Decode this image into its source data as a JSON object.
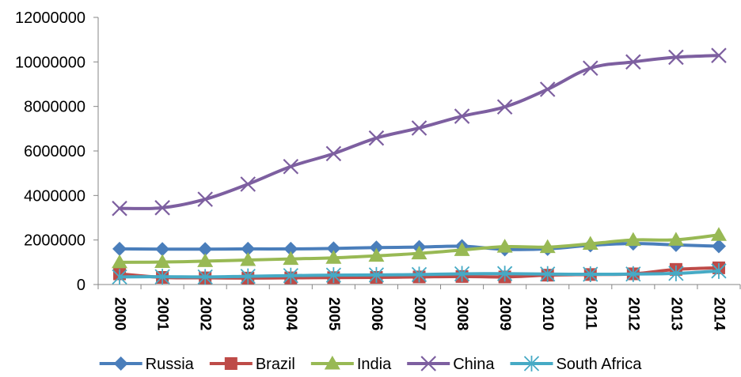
{
  "chart_data": {
    "type": "line",
    "title": "",
    "xlabel": "",
    "ylabel": "",
    "categories": [
      "2000",
      "2001",
      "2002",
      "2003",
      "2004",
      "2005",
      "2006",
      "2007",
      "2008",
      "2009",
      "2010",
      "2011",
      "2012",
      "2013",
      "2014"
    ],
    "ylim": [
      0,
      12000000
    ],
    "yticks": [
      "0",
      "2000000",
      "4000000",
      "6000000",
      "8000000",
      "10000000",
      "12000000"
    ],
    "grid": false,
    "legend_position": "bottom",
    "series": [
      {
        "name": "Russia",
        "color": "#4a7ebb",
        "marker": "diamond",
        "values": [
          1600000,
          1590000,
          1590000,
          1600000,
          1600000,
          1620000,
          1660000,
          1680000,
          1720000,
          1580000,
          1600000,
          1760000,
          1840000,
          1780000,
          1720000
        ]
      },
      {
        "name": "Brazil",
        "color": "#be4b48",
        "marker": "square",
        "values": [
          480000,
          320000,
          300000,
          290000,
          300000,
          310000,
          320000,
          340000,
          360000,
          340000,
          420000,
          450000,
          480000,
          680000,
          750000
        ]
      },
      {
        "name": "India",
        "color": "#98b954",
        "marker": "triangle",
        "values": [
          1000000,
          1010000,
          1050000,
          1100000,
          1150000,
          1200000,
          1290000,
          1400000,
          1550000,
          1700000,
          1680000,
          1830000,
          2000000,
          2010000,
          2230000
        ]
      },
      {
        "name": "China",
        "color": "#7d5fa0",
        "marker": "x",
        "values": [
          3420000,
          3450000,
          3830000,
          4510000,
          5300000,
          5880000,
          6580000,
          7030000,
          7560000,
          7980000,
          8770000,
          9720000,
          10000000,
          10210000,
          10290000
        ]
      },
      {
        "name": "South Africa",
        "color": "#46aac5",
        "marker": "asterisk",
        "values": [
          340000,
          350000,
          340000,
          370000,
          400000,
          420000,
          430000,
          450000,
          480000,
          490000,
          470000,
          460000,
          470000,
          500000,
          610000
        ]
      }
    ]
  }
}
